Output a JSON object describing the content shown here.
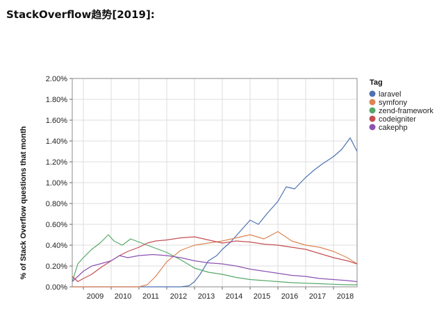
{
  "page": {
    "title": "StackOverflow趋势[2019]:"
  },
  "chart_data": {
    "type": "line",
    "title": "",
    "xlabel": "",
    "ylabel": "% of Stack Overflow questions that month",
    "xlim": [
      2008.6,
      2018.85
    ],
    "ylim": [
      0,
      2.0
    ],
    "y_ticks": [
      "0.00%",
      "0.20%",
      "0.40%",
      "0.60%",
      "0.80%",
      "1.00%",
      "1.20%",
      "1.40%",
      "1.60%",
      "1.80%",
      "2.00%"
    ],
    "x_ticks": [
      "2009",
      "2010",
      "2011",
      "2012",
      "2013",
      "2014",
      "2015",
      "2016",
      "2017",
      "2018"
    ],
    "grid": true,
    "legend": {
      "title": "Tag",
      "position": "right"
    },
    "series": [
      {
        "name": "laravel",
        "color": "#4c72b0",
        "x": [
          2008.6,
          2012.5,
          2012.8,
          2013.0,
          2013.2,
          2013.5,
          2013.8,
          2014.0,
          2014.3,
          2014.6,
          2015.0,
          2015.3,
          2015.6,
          2016.0,
          2016.3,
          2016.6,
          2017.0,
          2017.3,
          2017.6,
          2018.0,
          2018.3,
          2018.6,
          2018.85
        ],
        "values": [
          0,
          0,
          0.01,
          0.05,
          0.12,
          0.25,
          0.3,
          0.36,
          0.43,
          0.52,
          0.64,
          0.6,
          0.7,
          0.82,
          0.96,
          0.94,
          1.05,
          1.12,
          1.18,
          1.25,
          1.32,
          1.43,
          1.3
        ]
      },
      {
        "name": "symfony",
        "color": "#dd8452",
        "x": [
          2008.6,
          2011.0,
          2011.3,
          2011.6,
          2012.0,
          2012.5,
          2013.0,
          2013.5,
          2014.0,
          2014.5,
          2015.0,
          2015.5,
          2016.0,
          2016.5,
          2017.0,
          2017.5,
          2018.0,
          2018.5,
          2018.85
        ],
        "values": [
          0,
          0,
          0.02,
          0.1,
          0.24,
          0.35,
          0.4,
          0.42,
          0.44,
          0.47,
          0.5,
          0.46,
          0.53,
          0.44,
          0.4,
          0.38,
          0.34,
          0.28,
          0.22
        ]
      },
      {
        "name": "zend-framework",
        "color": "#55a868",
        "x": [
          2008.6,
          2008.8,
          2009.0,
          2009.3,
          2009.6,
          2009.9,
          2010.1,
          2010.4,
          2010.7,
          2011.0,
          2011.3,
          2011.6,
          2012.0,
          2012.5,
          2013.0,
          2013.5,
          2014.0,
          2014.5,
          2015.0,
          2015.5,
          2016.0,
          2016.5,
          2017.0,
          2017.5,
          2018.0,
          2018.5,
          2018.85
        ],
        "values": [
          0.05,
          0.22,
          0.28,
          0.36,
          0.42,
          0.5,
          0.44,
          0.4,
          0.46,
          0.43,
          0.4,
          0.37,
          0.33,
          0.26,
          0.18,
          0.14,
          0.12,
          0.09,
          0.07,
          0.06,
          0.05,
          0.04,
          0.035,
          0.03,
          0.025,
          0.02,
          0.02
        ]
      },
      {
        "name": "codeigniter",
        "color": "#c44e52",
        "x": [
          2008.6,
          2008.8,
          2009.0,
          2009.3,
          2009.6,
          2010.0,
          2010.3,
          2010.6,
          2011.0,
          2011.3,
          2011.6,
          2012.0,
          2012.5,
          2013.0,
          2013.5,
          2014.0,
          2014.5,
          2015.0,
          2015.5,
          2016.0,
          2016.5,
          2017.0,
          2017.5,
          2018.0,
          2018.5,
          2018.85
        ],
        "values": [
          0.1,
          0.05,
          0.08,
          0.12,
          0.18,
          0.25,
          0.3,
          0.34,
          0.38,
          0.42,
          0.44,
          0.45,
          0.47,
          0.48,
          0.45,
          0.42,
          0.44,
          0.43,
          0.41,
          0.4,
          0.38,
          0.36,
          0.32,
          0.28,
          0.25,
          0.22
        ]
      },
      {
        "name": "cakephp",
        "color": "#8c52b3",
        "x": [
          2008.6,
          2008.8,
          2009.0,
          2009.3,
          2009.6,
          2010.0,
          2010.3,
          2010.6,
          2011.0,
          2011.5,
          2012.0,
          2012.5,
          2013.0,
          2013.5,
          2014.0,
          2014.5,
          2015.0,
          2015.5,
          2016.0,
          2016.5,
          2017.0,
          2017.5,
          2018.0,
          2018.5,
          2018.85
        ],
        "values": [
          0.05,
          0.1,
          0.15,
          0.2,
          0.22,
          0.25,
          0.3,
          0.28,
          0.3,
          0.31,
          0.3,
          0.28,
          0.25,
          0.23,
          0.22,
          0.2,
          0.17,
          0.15,
          0.13,
          0.11,
          0.1,
          0.08,
          0.07,
          0.06,
          0.05
        ]
      }
    ]
  }
}
